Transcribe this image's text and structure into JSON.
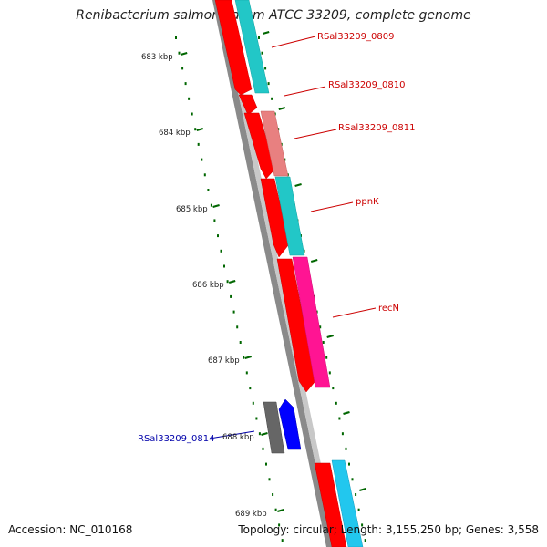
{
  "title": "Renibacterium salmoninarum ATCC 33209, complete genome",
  "accession": "Accession: NC_010168",
  "summary": "Topology: circular; Length: 3,155,250 bp; Genes: 3,558",
  "ticks": [
    {
      "label": "683 kbp",
      "kbp": 683
    },
    {
      "label": "684 kbp",
      "kbp": 684
    },
    {
      "label": "685 kbp",
      "kbp": 685
    },
    {
      "label": "686 kbp",
      "kbp": 686
    },
    {
      "label": "687 kbp",
      "kbp": 687
    },
    {
      "label": "688 kbp",
      "kbp": 688
    },
    {
      "label": "689 kbp",
      "kbp": 689
    }
  ],
  "gene_labels": [
    {
      "name": "RSal33209_0809",
      "color": "#cc0000"
    },
    {
      "name": "RSal33209_0810",
      "color": "#cc0000"
    },
    {
      "name": "RSal33209_0811",
      "color": "#cc0000"
    },
    {
      "name": "ppnK",
      "color": "#cc0000"
    },
    {
      "name": "recN",
      "color": "#cc0000"
    },
    {
      "name": "RSal33209_0814",
      "color": "#0000aa"
    }
  ],
  "colors": {
    "cds": "#ff0000",
    "gene_cyan": "#22c7c7",
    "gene_pink": "#e88080",
    "gene_magenta": "#ff1493",
    "gene_blue": "#0000ff",
    "gene_gray": "#666666",
    "backbone": "#888888",
    "tick": "#006600"
  }
}
